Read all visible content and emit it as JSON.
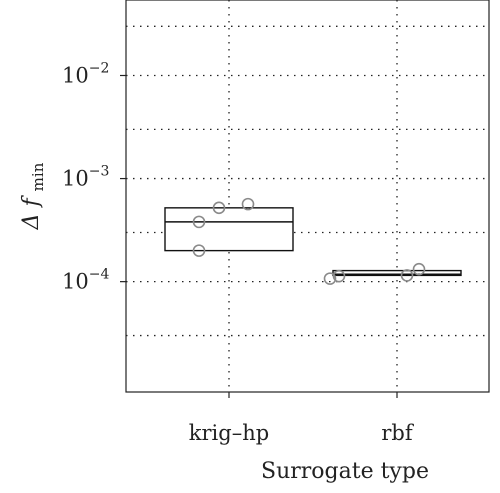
{
  "chart_data": {
    "type": "box",
    "xlabel": "Surrogate type",
    "ylabel": {
      "main": "Δ f",
      "sub": "min"
    },
    "yscale": "log10",
    "ylim": [
      8.5e-06,
      0.054
    ],
    "grid": true,
    "categories": [
      "krig–hp",
      "rbf"
    ],
    "boxes": [
      {
        "category": "krig–hp",
        "q1": 0.0002,
        "median": 0.00038,
        "q3": 0.00052
      },
      {
        "category": "rbf",
        "q1": 0.000115,
        "median": 0.000118,
        "q3": 0.000128
      }
    ],
    "points": [
      {
        "category": "krig–hp",
        "y": 0.0002
      },
      {
        "category": "krig–hp",
        "y": 0.00038
      },
      {
        "category": "krig–hp",
        "y": 0.00052
      },
      {
        "category": "krig–hp",
        "y": 0.000565
      },
      {
        "category": "rbf",
        "y": 0.000107
      },
      {
        "category": "rbf",
        "y": 0.000113
      },
      {
        "category": "rbf",
        "y": 0.000115
      },
      {
        "category": "rbf",
        "y": 0.000132
      }
    ],
    "yticks": [
      {
        "value": 0.01,
        "base": "10",
        "exp": "−2"
      },
      {
        "value": 0.001,
        "base": "10",
        "exp": "−3"
      },
      {
        "value": 0.0001,
        "base": "10",
        "exp": "−4"
      }
    ],
    "minor_gridlines": [
      0.03,
      0.003,
      0.0003,
      3e-05
    ]
  }
}
